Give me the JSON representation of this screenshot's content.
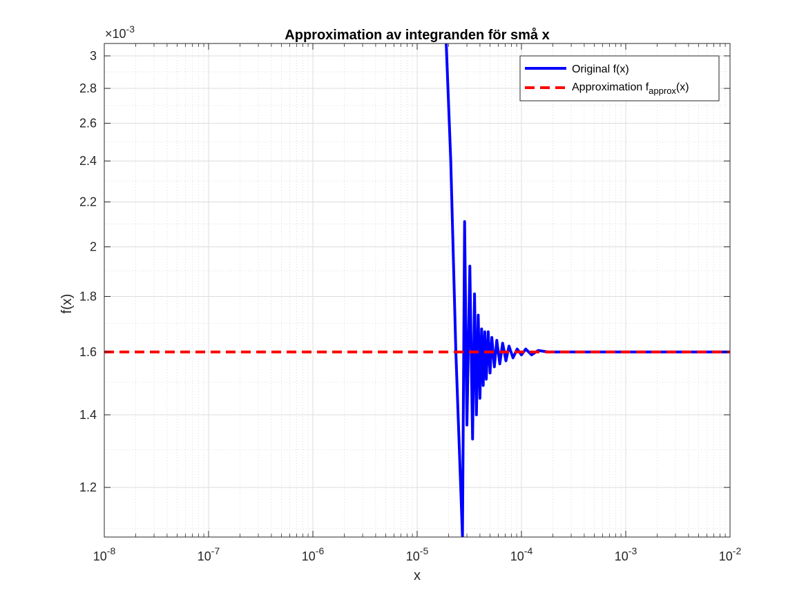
{
  "chart_data": {
    "type": "line",
    "title": "Approximation av integranden för små x",
    "xlabel": "x",
    "ylabel": "f(x)",
    "xscale": "log",
    "yscale": "log",
    "xlim": [
      1e-08,
      0.01
    ],
    "ylim": [
      0.00108,
      0.00308
    ],
    "y_exponent_label": "×10",
    "y_exponent_power": "-3",
    "x_ticks": [
      {
        "value": 1e-08,
        "base": "10",
        "exp": "-8"
      },
      {
        "value": 1e-07,
        "base": "10",
        "exp": "-7"
      },
      {
        "value": 1e-06,
        "base": "10",
        "exp": "-6"
      },
      {
        "value": 1e-05,
        "base": "10",
        "exp": "-5"
      },
      {
        "value": 0.0001,
        "base": "10",
        "exp": "-4"
      },
      {
        "value": 0.001,
        "base": "10",
        "exp": "-3"
      },
      {
        "value": 0.01,
        "base": "10",
        "exp": "-2"
      }
    ],
    "y_ticks": [
      {
        "value": 0.0012,
        "label": "1.2"
      },
      {
        "value": 0.0014,
        "label": "1.4"
      },
      {
        "value": 0.0016,
        "label": "1.6"
      },
      {
        "value": 0.0018,
        "label": "1.8"
      },
      {
        "value": 0.002,
        "label": "2"
      },
      {
        "value": 0.0022,
        "label": "2.2"
      },
      {
        "value": 0.0024,
        "label": "2.4"
      },
      {
        "value": 0.0026,
        "label": "2.6"
      },
      {
        "value": 0.0028,
        "label": "2.8"
      },
      {
        "value": 0.003,
        "label": "3"
      }
    ],
    "grid": true,
    "minor_grid": true,
    "legend_position": "top-right",
    "series": [
      {
        "name": "Original f(x)",
        "color": "#0000ff",
        "style": "solid",
        "x": [
          1.9e-05,
          2.1e-05,
          2.35e-05,
          2.72e-05,
          2.85e-05,
          3e-05,
          3.2e-05,
          3.4e-05,
          3.55e-05,
          3.7e-05,
          3.85e-05,
          4e-05,
          4.15e-05,
          4.3e-05,
          4.45e-05,
          4.6e-05,
          4.8e-05,
          5e-05,
          5.2e-05,
          5.5e-05,
          5.8e-05,
          6.2e-05,
          6.6e-05,
          7.1e-05,
          7.6e-05,
          8.3e-05,
          9.1e-05,
          0.0001,
          0.00011,
          0.000125,
          0.000145,
          0.00018,
          0.0003,
          0.001,
          0.01
        ],
        "y": [
          0.00308,
          0.0024,
          0.0016,
          0.00108,
          0.00211,
          0.00137,
          0.00192,
          0.00133,
          0.00181,
          0.0014,
          0.00173,
          0.00145,
          0.00168,
          0.00149,
          0.00167,
          0.00151,
          0.00167,
          0.00153,
          0.00165,
          0.00155,
          0.00164,
          0.00156,
          0.00163,
          0.00157,
          0.00162,
          0.00158,
          0.00161,
          0.00159,
          0.00161,
          0.00159,
          0.001605,
          0.0016,
          0.0016,
          0.0016,
          0.0016
        ]
      },
      {
        "name": "Approximation f",
        "name_subscript": "approx",
        "name_suffix": "(x)",
        "color": "#ff0000",
        "style": "dashed",
        "x": [
          1e-08,
          0.01
        ],
        "y": [
          0.0016,
          0.0016
        ]
      }
    ]
  }
}
